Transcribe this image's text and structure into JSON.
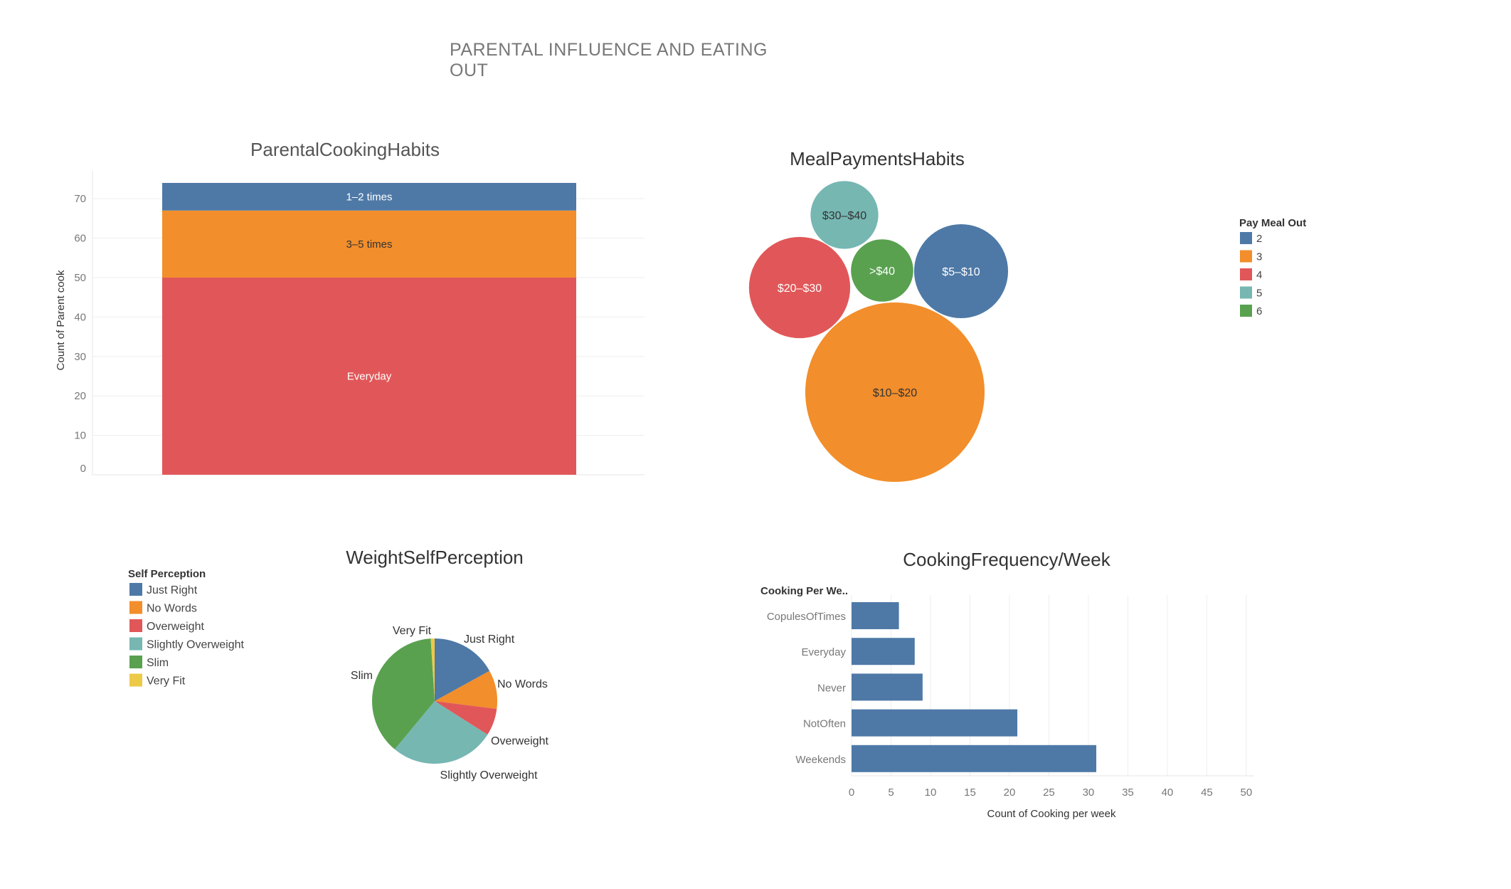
{
  "page": {
    "title": "PARENTAL INFLUENCE AND EATING OUT"
  },
  "chart_data": [
    {
      "id": "parental-cooking",
      "type": "bar",
      "title": "ParentalCookingHabits",
      "ylabel": "Count of Parent cook",
      "xlabel": "",
      "ylim": [
        0,
        74
      ],
      "yticks": [
        0,
        10,
        20,
        30,
        40,
        50,
        60,
        70
      ],
      "grid": true,
      "stacked": true,
      "segments": [
        {
          "name": "Everyday",
          "value": 50,
          "color": "#e15759"
        },
        {
          "name": "3–5 times",
          "value": 17,
          "color": "#f28e2b"
        },
        {
          "name": "1–2 times",
          "value": 7,
          "color": "#4e79a7"
        }
      ]
    },
    {
      "id": "meal-payments",
      "type": "bubble",
      "title": "MealPaymentsHabits",
      "legend_title": "Pay Meal Out",
      "legend_position": "right",
      "legend": [
        {
          "label": "2",
          "color": "#4e79a7"
        },
        {
          "label": "3",
          "color": "#f28e2b"
        },
        {
          "label": "4",
          "color": "#e15759"
        },
        {
          "label": "5",
          "color": "#76b7b2"
        },
        {
          "label": "6",
          "color": "#59a14f"
        }
      ],
      "bubbles": [
        {
          "label": "$30–$40",
          "category": "5",
          "value": 13,
          "color": "#76b7b2",
          "text_color": "#333333"
        },
        {
          "label": "$20–$30",
          "category": "4",
          "value": 29,
          "color": "#e15759",
          "text_color": "#ffffff"
        },
        {
          "label": ">$40",
          "category": "6",
          "value": 11,
          "color": "#59a14f",
          "text_color": "#ffffff"
        },
        {
          "label": "$5–$10",
          "category": "2",
          "value": 25,
          "color": "#4e79a7",
          "text_color": "#ffffff"
        },
        {
          "label": "$10–$20",
          "category": "3",
          "value": 91,
          "color": "#f28e2b",
          "text_color": "#333333"
        }
      ]
    },
    {
      "id": "weight-perception",
      "type": "pie",
      "title": "WeightSelfPerception",
      "legend_title": "Self Perception",
      "legend_position": "left",
      "slices": [
        {
          "name": "Just Right",
          "value": 17,
          "color": "#4e79a7"
        },
        {
          "name": "No Words",
          "value": 10,
          "color": "#f28e2b"
        },
        {
          "name": "Overweight",
          "value": 7,
          "color": "#e15759"
        },
        {
          "name": "Slightly Overweight",
          "value": 27,
          "color": "#76b7b2"
        },
        {
          "name": "Slim",
          "value": 38,
          "color": "#59a14f"
        },
        {
          "name": "Very Fit",
          "value": 1,
          "color": "#edc948"
        }
      ]
    },
    {
      "id": "cooking-frequency",
      "type": "bar",
      "orientation": "horizontal",
      "title": "CookingFrequency/Week",
      "category_header": "Cooking Per We..",
      "xlabel": "Count of Cooking per week",
      "xlim": [
        0,
        51
      ],
      "xticks": [
        0,
        5,
        10,
        15,
        20,
        25,
        30,
        35,
        40,
        45,
        50
      ],
      "grid": true,
      "color": "#4e79a7",
      "categories": [
        "CopulesOfTimes",
        "Everyday",
        "Never",
        "NotOften",
        "Weekends"
      ],
      "values": [
        6,
        8,
        9,
        21,
        31
      ]
    }
  ]
}
